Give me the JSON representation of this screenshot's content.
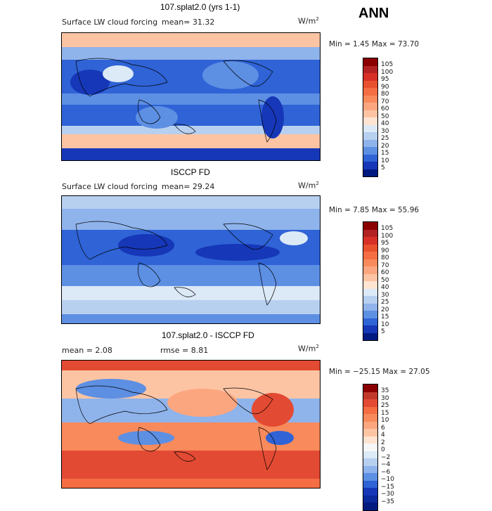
{
  "season": "ANN",
  "units_base": "W/m",
  "units_exp": "2",
  "panels": [
    {
      "title": "107.splat2.0 (yrs 1-1)",
      "field_label": "Surface LW cloud forcing",
      "mean_text": "mean=  31.32",
      "minmax_text": "Min =   1.45 Max =  73.70",
      "colorbar": {
        "labels": [
          "105",
          "100",
          "95",
          "90",
          "80",
          "70",
          "60",
          "50",
          "40",
          "30",
          "25",
          "20",
          "15",
          "10",
          "5"
        ],
        "colors": [
          "#8b0000",
          "#b22222",
          "#d73027",
          "#e8512d",
          "#f46d43",
          "#f88a5c",
          "#fca67f",
          "#fdc4a3",
          "#fee4d1",
          "#dce9f7",
          "#b8d0f0",
          "#8fb3eb",
          "#5d8fe3",
          "#2f63d6",
          "#1637b8",
          "#001a80"
        ]
      }
    },
    {
      "title": "ISCCP FD",
      "field_label": "Surface LW cloud forcing",
      "mean_text": "mean=  29.24",
      "minmax_text": "Min =   7.85 Max =  55.96",
      "colorbar": {
        "labels": [
          "105",
          "100",
          "95",
          "90",
          "80",
          "70",
          "60",
          "50",
          "40",
          "30",
          "25",
          "20",
          "15",
          "10",
          "5"
        ],
        "colors": [
          "#8b0000",
          "#b22222",
          "#d73027",
          "#e8512d",
          "#f46d43",
          "#f88a5c",
          "#fca67f",
          "#fdc4a3",
          "#fee4d1",
          "#dce9f7",
          "#b8d0f0",
          "#8fb3eb",
          "#5d8fe3",
          "#2f63d6",
          "#1637b8",
          "#001a80"
        ]
      }
    },
    {
      "title": "107.splat2.0 - ISCCP FD",
      "mean_text": "mean =   2.08",
      "rmse_text": "rmse =   8.81",
      "minmax_text": "Min = −25.15 Max =  27.05",
      "colorbar": {
        "labels": [
          "35",
          "30",
          "25",
          "15",
          "10",
          "6",
          "4",
          "2",
          "0",
          "−2",
          "−4",
          "−6",
          "−10",
          "−15",
          "−30",
          "−35"
        ],
        "colors": [
          "#8b0000",
          "#c0392b",
          "#e34a33",
          "#f46d43",
          "#f88a5c",
          "#fca67f",
          "#fdc4a3",
          "#fee4d1",
          "#f7f7f7",
          "#dce9f7",
          "#b8d0f0",
          "#8fb3eb",
          "#5d8fe3",
          "#2f63d6",
          "#1637b8",
          "#0a2a9c",
          "#001a80"
        ]
      }
    }
  ]
}
